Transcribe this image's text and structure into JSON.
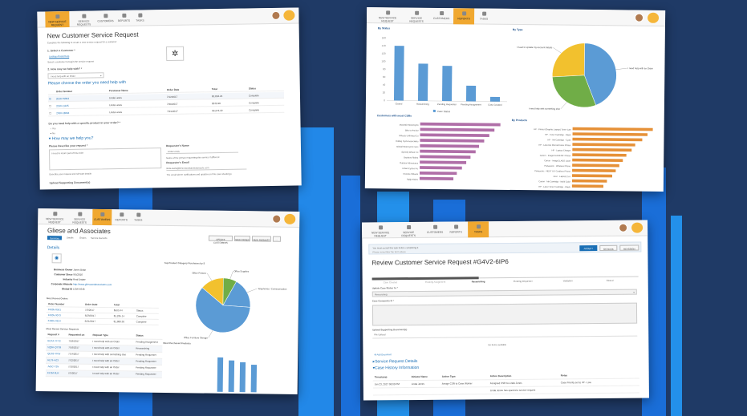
{
  "nav": {
    "new_service_request": "NEW SERVICE REQUEST",
    "service_requests": "SERVICE REQUESTS",
    "customers": "CUSTOMERS",
    "reports": "REPORTS",
    "tasks": "TASKS"
  },
  "form": {
    "title": "New Customer Service Request",
    "intro": "Complete the following to create a new service request for a customer",
    "select_customer_label": "1. Select a Customer *",
    "customer_value": "Lindsay Arnold Corp",
    "customer_hint": "Select a customer to begin the service request",
    "need_help_label": "2. How may we help with? *",
    "need_help_value": "I need help with an Order",
    "choose_order_heading": "Please choose the order you need help with",
    "columns": [
      "Order Number",
      "Purchaser Name",
      "Order Date",
      "Total",
      "Status"
    ],
    "orders": [
      {
        "number": "2010-75094",
        "purchaser": "Linda Lewis",
        "date": "7/12/2017",
        "total": "$2,804.24",
        "status": "Complete"
      },
      {
        "number": "2010-11125",
        "purchaser": "Linda Lewis",
        "date": "7/20/2017",
        "total": "$570.96",
        "status": "Complete"
      },
      {
        "number": "2010-18894",
        "purchaser": "Linda Lewis",
        "date": "7/21/2017",
        "total": "$4,274.22",
        "status": "Complete"
      }
    ],
    "specific_product_q": "Do you need help with a specific product in your order? *",
    "yes": "Yes",
    "no": "No",
    "how_help_heading": "How may we help you?",
    "describe_label": "Please Describe your request *",
    "describe_value": "I need to return part of this order",
    "describe_hint": "Describe your request and relevant details",
    "requester_name_label": "Requester's Name",
    "requester_name_value": "Linda Lewis",
    "requester_name_hint": "Name of the person requesting this service if different",
    "requester_email_label": "Requester's Email",
    "requester_email_value": "linda.lewis@best-mountainmotorcycle.com",
    "requester_email_hint": "The email where notifications and updates on this case should go",
    "upload_label": "Upload Supporting Document(s)"
  },
  "reports": {
    "by_status_title": "By Status",
    "by_type_title": "By Type",
    "status_chart_data": {
      "type": "bar",
      "categories": [
        "Closed",
        "Researching",
        "Pending Requester",
        "Pending Assignment",
        "Case Created"
      ],
      "values": [
        140,
        95,
        90,
        40,
        12
      ],
      "ylim": [
        0,
        160
      ],
      "yticks": [
        "160",
        "140",
        "120",
        "100",
        "80",
        "60",
        "40",
        "20",
        "0"
      ],
      "legend": "Case Status"
    },
    "type_chart_data": {
      "type": "pie",
      "labels": [
        "I need to update my account details",
        "I need help with an Order",
        "I need help with something else"
      ],
      "values": [
        26,
        44,
        30
      ],
      "colors": [
        "#f2c12e",
        "#5b9bd5",
        "#70ad47"
      ]
    },
    "customers_title": "Customers with most CSRs",
    "customers_chart_data": {
      "type": "bar",
      "categories": [
        "Mountain Motorcycle",
        "Bike to Anchor",
        "Wheels Unlimited Co",
        "Rolling Cycle Associates",
        "Global Motorcycle Fans",
        "Speedy Wheel Co",
        "Brothers Riders",
        "Outdoor Adventures",
        "Urban Cycles Inc",
        "Chrome Wheels",
        "Rally Riders"
      ],
      "values": [
        95,
        88,
        82,
        76,
        70,
        66,
        60,
        55,
        50,
        44,
        40
      ]
    },
    "products_title": "By Products",
    "products_chart_data": {
      "type": "bar",
      "categories": [
        "HP - Printer (Graphic Laptop) Toner Cart",
        "HP - Toner Cartridge - Black",
        "HP - Ink Cartridge - Cyan",
        "HP - LaserJet Monochrome Printer",
        "HP - Laptop Charger",
        "Canon - ImageCLASS MF Printer",
        "Canon - ImageCLASS Laser",
        "Panasonic - Wireless Phone",
        "Panasonic - NEXT 8.0 Cordless Phone",
        "Acer - Laptop 15.6",
        "Canon - Ink Cartridge - Multi Color",
        "HP - Laser Toner Cartridge - Black"
      ],
      "values": [
        92,
        86,
        80,
        72,
        68,
        62,
        58,
        54,
        50,
        46,
        40,
        36
      ]
    }
  },
  "customer": {
    "name": "Gliese and Associates",
    "tabs": [
      "Summary",
      "Details",
      "Orders",
      "Service Records"
    ],
    "buttons": [
      "UPDATE CUSTOMERS",
      "NEW ORDER",
      "NEW REQUEST"
    ],
    "details_heading": "Details",
    "fields": [
      {
        "label": "Business Owner",
        "value": "Jones Brian"
      },
      {
        "label": "Customer Since",
        "value": "9/5/2016"
      },
      {
        "label": "Industry",
        "value": "Real Estate"
      },
      {
        "label": "Corporate Website",
        "value": "http://www.glieseandassociates.com"
      },
      {
        "label": "Global ID",
        "value": "LOW-4048"
      }
    ],
    "recent_orders_label": "Most Recent Orders",
    "orders_columns": [
      "Order Number",
      "Order Date",
      "Total"
    ],
    "orders": [
      {
        "number": "#4005-8591",
        "date": "7/3/2017",
        "total": "$503.44",
        "status": "Status"
      },
      {
        "number": "#4005-9073",
        "date": "6/29/2017",
        "total": "$1,285.14",
        "status": "Complete"
      },
      {
        "number": "#4005-9214",
        "date": "6/21/2017",
        "total": "$1,880.30",
        "status": "Complete"
      }
    ],
    "requests_label": "Most Recent Service Requests",
    "requests_columns": [
      "Request #",
      "Requested on",
      "Request Type",
      "Status"
    ],
    "requests": [
      {
        "id": "BCAX-7FY2",
        "date": "7/18/2017",
        "type": "I need help with an Order",
        "status": "Pending Assignment"
      },
      {
        "id": "5QSK-QTS9",
        "date": "7/16/2017",
        "type": "I need help with an Order",
        "status": "Researching"
      },
      {
        "id": "QDS3-YKW",
        "date": "7/14/2017",
        "type": "I need help with something else",
        "status": "Pending Requester"
      },
      {
        "id": "HLT9-HZ3",
        "date": "7/12/2017",
        "type": "I need help with an Order",
        "status": "Pending Requester"
      },
      {
        "id": "JVBC-T2N",
        "date": "7/10/2017",
        "type": "I need help with an Order",
        "status": "Pending Requester"
      },
      {
        "id": "KF3M-9LR",
        "date": "7/5/2017",
        "type": "I need help with an Order",
        "status": "Pending Requester"
      }
    ],
    "category_title": "Top Product Category Purchases by $",
    "category_chart_data": {
      "type": "pie",
      "labels": [
        "Office Printers",
        "Office Supplies",
        "Telephones / Communication",
        "Office Furniture Storage"
      ],
      "values": [
        14,
        8,
        18,
        60
      ],
      "colors": [
        "#f2c12e",
        "#70ad47",
        "#5b9bd5",
        "#5b9bd5"
      ]
    },
    "most_purchased_title": "Most Purchased Products",
    "most_purchased_chart_data": {
      "type": "bar",
      "categories": [
        "P1",
        "P2",
        "P3",
        "P4"
      ],
      "values": [
        60,
        55,
        52,
        48
      ]
    }
  },
  "review": {
    "notice": "You must accept this task before completing it.",
    "notice_sub": "Please remember the form above",
    "accept": "ACCEPT",
    "go_back": "GO BACK",
    "reassign": "REASSIGN",
    "title": "Review Customer Service Request #G4V2-6IP6",
    "steps": [
      "Case Created",
      "Pending Assignment",
      "Researching",
      "Pending Requester",
      "Validation",
      "Closed"
    ],
    "update_status_label": "Update Case Status To *",
    "update_status_value": "Researching",
    "comments_label": "Case Comments 0/ *",
    "upload_label": "Upload Supporting Document(s)",
    "file_upload": "File Upload",
    "no_items": "No items available",
    "add_document": "Add Document",
    "details_link": "Service Request Details",
    "history_link": "Case History Information",
    "history_columns": [
      "Timestamp",
      "Initiator Name",
      "Action Type",
      "Action Description",
      "Notes"
    ],
    "history": [
      {
        "time": "Jan 23, 2017 06:00 PM",
        "name": "Linda Jones",
        "type": "Assign CSR to Case Worker",
        "desc": "Assigned CSR to Linda Jones",
        "notes": "Case Priority set to 4P - Low"
      },
      {
        "time": "",
        "name": "",
        "type": "",
        "desc": "Linda Jones has opened a service request",
        "notes": ""
      }
    ]
  }
}
